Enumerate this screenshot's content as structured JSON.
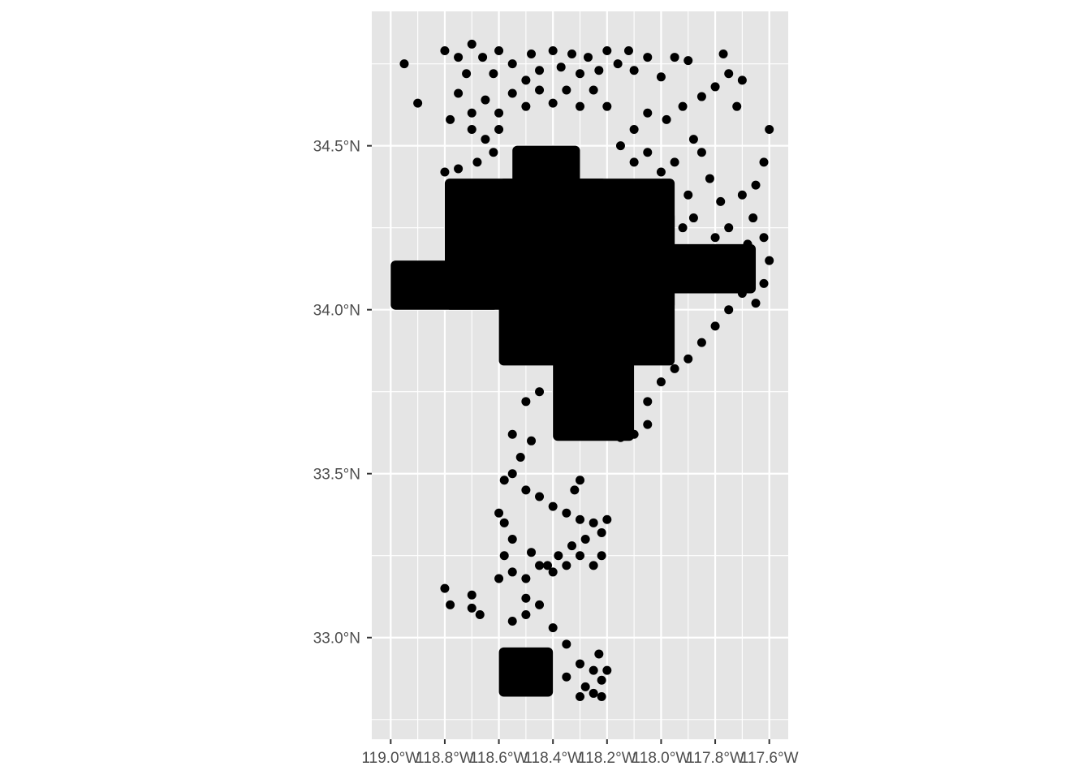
{
  "chart_data": {
    "type": "scatter",
    "title": "",
    "xlabel": "",
    "ylabel": "",
    "grid": true,
    "xlim": [
      -119.07,
      -117.53
    ],
    "ylim": [
      32.69,
      34.91
    ],
    "x_ticks": [
      {
        "value": -119.0,
        "label": "119.0°W"
      },
      {
        "value": -118.8,
        "label": "118.8°W"
      },
      {
        "value": -118.6,
        "label": "118.6°W"
      },
      {
        "value": -118.4,
        "label": "118.4°W"
      },
      {
        "value": -118.2,
        "label": "118.2°W"
      },
      {
        "value": -118.0,
        "label": "118.0°W"
      },
      {
        "value": -117.8,
        "label": "117.8°W"
      },
      {
        "value": -117.6,
        "label": "117.6°W"
      }
    ],
    "y_ticks": [
      {
        "value": 33.0,
        "label": "33.0°N"
      },
      {
        "value": 33.5,
        "label": "33.5°N"
      },
      {
        "value": 34.0,
        "label": "34.0°N"
      },
      {
        "value": 34.5,
        "label": "34.5°N"
      }
    ],
    "point_color": "#000000",
    "panel_color": "#e5e5e5",
    "grid_color": "#ffffff",
    "dense_regions": [
      {
        "lon": [
          -118.8,
          -118.2
        ],
        "lat": [
          34.0,
          34.4
        ]
      },
      {
        "lon": [
          -118.6,
          -117.95
        ],
        "lat": [
          33.83,
          34.4
        ]
      },
      {
        "lon": [
          -118.4,
          -118.1
        ],
        "lat": [
          33.6,
          34.15
        ]
      },
      {
        "lon": [
          -118.3,
          -117.95
        ],
        "lat": [
          34.0,
          34.3
        ]
      },
      {
        "lon": [
          -118.0,
          -117.65
        ],
        "lat": [
          34.05,
          34.2
        ]
      },
      {
        "lon": [
          -119.0,
          -118.6
        ],
        "lat": [
          34.0,
          34.15
        ]
      },
      {
        "lon": [
          -118.55,
          -118.3
        ],
        "lat": [
          34.3,
          34.5
        ]
      },
      {
        "lon": [
          -118.6,
          -118.4
        ],
        "lat": [
          32.82,
          32.97
        ]
      }
    ],
    "sparse_points": [
      [
        -118.95,
        34.75
      ],
      [
        -118.9,
        34.63
      ],
      [
        -118.8,
        34.79
      ],
      [
        -118.75,
        34.77
      ],
      [
        -118.72,
        34.72
      ],
      [
        -118.7,
        34.81
      ],
      [
        -118.66,
        34.77
      ],
      [
        -118.62,
        34.72
      ],
      [
        -118.6,
        34.79
      ],
      [
        -118.55,
        34.75
      ],
      [
        -118.5,
        34.7
      ],
      [
        -118.48,
        34.78
      ],
      [
        -118.45,
        34.73
      ],
      [
        -118.4,
        34.79
      ],
      [
        -118.37,
        34.74
      ],
      [
        -118.33,
        34.78
      ],
      [
        -118.3,
        34.72
      ],
      [
        -118.27,
        34.77
      ],
      [
        -118.23,
        34.73
      ],
      [
        -118.2,
        34.79
      ],
      [
        -118.16,
        34.75
      ],
      [
        -118.12,
        34.79
      ],
      [
        -118.1,
        34.73
      ],
      [
        -118.05,
        34.77
      ],
      [
        -118.0,
        34.71
      ],
      [
        -117.95,
        34.77
      ],
      [
        -117.9,
        34.76
      ],
      [
        -117.77,
        34.78
      ],
      [
        -117.75,
        34.72
      ],
      [
        -117.7,
        34.7
      ],
      [
        -117.72,
        34.62
      ],
      [
        -117.8,
        34.68
      ],
      [
        -117.85,
        34.65
      ],
      [
        -117.92,
        34.62
      ],
      [
        -117.98,
        34.58
      ],
      [
        -118.05,
        34.6
      ],
      [
        -118.1,
        34.55
      ],
      [
        -118.2,
        34.62
      ],
      [
        -118.25,
        34.67
      ],
      [
        -118.3,
        34.62
      ],
      [
        -118.35,
        34.67
      ],
      [
        -118.4,
        34.63
      ],
      [
        -118.45,
        34.67
      ],
      [
        -118.5,
        34.62
      ],
      [
        -118.55,
        34.66
      ],
      [
        -118.6,
        34.6
      ],
      [
        -118.65,
        34.64
      ],
      [
        -118.7,
        34.6
      ],
      [
        -118.75,
        34.66
      ],
      [
        -118.78,
        34.58
      ],
      [
        -118.7,
        34.55
      ],
      [
        -118.65,
        34.52
      ],
      [
        -118.6,
        34.55
      ],
      [
        -118.62,
        34.48
      ],
      [
        -118.68,
        34.45
      ],
      [
        -118.75,
        34.43
      ],
      [
        -118.8,
        34.42
      ],
      [
        -117.6,
        34.55
      ],
      [
        -117.62,
        34.45
      ],
      [
        -117.65,
        34.38
      ],
      [
        -117.7,
        34.35
      ],
      [
        -117.66,
        34.28
      ],
      [
        -117.68,
        34.2
      ],
      [
        -117.62,
        34.22
      ],
      [
        -117.6,
        34.15
      ],
      [
        -117.62,
        34.08
      ],
      [
        -117.65,
        34.02
      ],
      [
        -117.7,
        34.05
      ],
      [
        -117.75,
        34.0
      ],
      [
        -117.8,
        33.95
      ],
      [
        -117.85,
        33.9
      ],
      [
        -117.9,
        33.85
      ],
      [
        -117.95,
        33.82
      ],
      [
        -118.0,
        33.78
      ],
      [
        -118.05,
        33.72
      ],
      [
        -118.05,
        33.65
      ],
      [
        -118.1,
        33.62
      ],
      [
        -118.15,
        33.61
      ],
      [
        -118.2,
        33.62
      ],
      [
        -118.45,
        33.75
      ],
      [
        -118.5,
        33.72
      ],
      [
        -118.55,
        33.62
      ],
      [
        -118.48,
        33.6
      ],
      [
        -118.52,
        33.55
      ],
      [
        -118.55,
        33.5
      ],
      [
        -118.58,
        33.48
      ],
      [
        -118.5,
        33.45
      ],
      [
        -118.45,
        33.43
      ],
      [
        -118.4,
        33.4
      ],
      [
        -118.35,
        33.38
      ],
      [
        -118.3,
        33.36
      ],
      [
        -118.25,
        33.35
      ],
      [
        -118.2,
        33.36
      ],
      [
        -118.22,
        33.32
      ],
      [
        -118.28,
        33.3
      ],
      [
        -118.33,
        33.28
      ],
      [
        -118.38,
        33.25
      ],
      [
        -118.42,
        33.22
      ],
      [
        -118.48,
        33.26
      ],
      [
        -118.55,
        33.3
      ],
      [
        -118.58,
        33.35
      ],
      [
        -118.6,
        33.38
      ],
      [
        -118.58,
        33.25
      ],
      [
        -118.55,
        33.2
      ],
      [
        -118.6,
        33.18
      ],
      [
        -118.5,
        33.18
      ],
      [
        -118.45,
        33.22
      ],
      [
        -118.4,
        33.2
      ],
      [
        -118.35,
        33.22
      ],
      [
        -118.3,
        33.25
      ],
      [
        -118.25,
        33.22
      ],
      [
        -118.22,
        33.25
      ],
      [
        -118.3,
        33.48
      ],
      [
        -118.32,
        33.45
      ],
      [
        -118.5,
        33.12
      ],
      [
        -118.45,
        33.1
      ],
      [
        -118.5,
        33.07
      ],
      [
        -118.55,
        33.05
      ],
      [
        -118.4,
        33.03
      ],
      [
        -118.8,
        33.15
      ],
      [
        -118.78,
        33.1
      ],
      [
        -118.7,
        33.13
      ],
      [
        -118.7,
        33.09
      ],
      [
        -118.67,
        33.07
      ],
      [
        -118.35,
        32.98
      ],
      [
        -118.3,
        32.92
      ],
      [
        -118.25,
        32.9
      ],
      [
        -118.22,
        32.87
      ],
      [
        -118.2,
        32.9
      ],
      [
        -118.23,
        32.95
      ],
      [
        -118.25,
        32.83
      ],
      [
        -118.3,
        32.82
      ],
      [
        -118.35,
        32.88
      ],
      [
        -118.28,
        32.85
      ],
      [
        -118.22,
        32.82
      ],
      [
        -117.88,
        34.52
      ],
      [
        -117.85,
        34.48
      ],
      [
        -117.82,
        34.4
      ],
      [
        -117.78,
        34.33
      ],
      [
        -117.9,
        34.35
      ],
      [
        -117.95,
        34.45
      ],
      [
        -118.0,
        34.42
      ],
      [
        -118.05,
        34.48
      ],
      [
        -118.1,
        34.45
      ],
      [
        -118.15,
        34.5
      ],
      [
        -117.75,
        34.25
      ],
      [
        -117.8,
        34.22
      ],
      [
        -117.88,
        34.28
      ],
      [
        -117.92,
        34.25
      ]
    ]
  }
}
